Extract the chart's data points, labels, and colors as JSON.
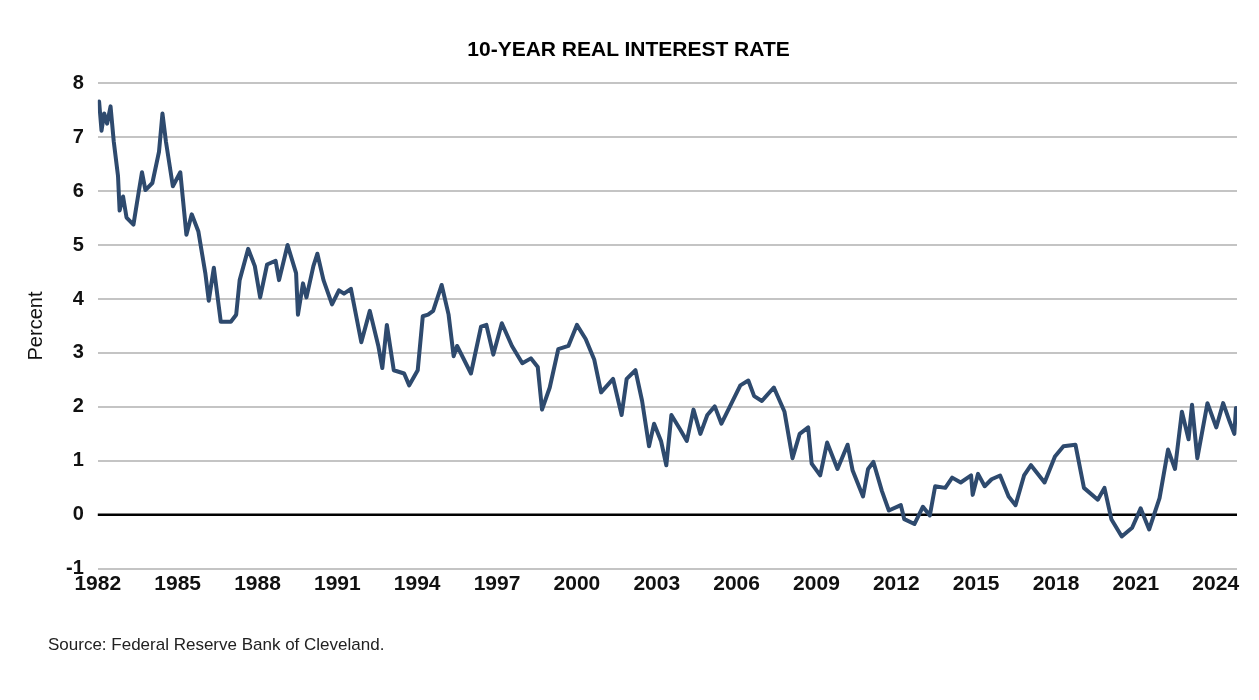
{
  "chart_data": {
    "type": "line",
    "title": "10-YEAR REAL INTEREST RATE",
    "ylabel": "Percent",
    "annotations": [
      "Source: Federal Reserve Bank of Cleveland."
    ],
    "xlim": [
      1982,
      2024.8
    ],
    "xticks": [
      1982,
      1985,
      1988,
      1991,
      1994,
      1997,
      2000,
      2003,
      2006,
      2009,
      2012,
      2015,
      2018,
      2021,
      2024
    ],
    "ylim": [
      -1,
      8
    ],
    "yticks": [
      -1,
      0,
      1,
      2,
      3,
      4,
      5,
      6,
      7,
      8
    ],
    "grid": "y",
    "legend": false,
    "marker": "none",
    "line_style": "solid",
    "ref_lines": [
      {
        "axis": "y",
        "value": 0,
        "color": "#000000"
      }
    ],
    "series": [
      {
        "color": "#2e4a6e",
        "x": [
          1982.05,
          1982.14,
          1982.24,
          1982.35,
          1982.48,
          1982.6,
          1982.76,
          1982.82,
          1982.95,
          1983.08,
          1983.34,
          1983.53,
          1983.66,
          1983.79,
          1984.05,
          1984.3,
          1984.43,
          1984.56,
          1984.82,
          1985.1,
          1985.33,
          1985.53,
          1985.78,
          1986.04,
          1986.17,
          1986.36,
          1986.62,
          1987.0,
          1987.2,
          1987.33,
          1987.65,
          1987.9,
          1988.1,
          1988.36,
          1988.68,
          1988.81,
          1989.13,
          1989.45,
          1989.52,
          1989.71,
          1989.84,
          1990.1,
          1990.25,
          1990.48,
          1990.8,
          1991.06,
          1991.25,
          1991.51,
          1991.9,
          1992.22,
          1992.54,
          1992.69,
          1992.86,
          1993.12,
          1993.51,
          1993.7,
          1994.02,
          1994.21,
          1994.41,
          1994.6,
          1994.92,
          1995.18,
          1995.37,
          1995.5,
          1996.02,
          1996.4,
          1996.6,
          1996.86,
          1997.18,
          1997.56,
          1997.95,
          1998.27,
          1998.53,
          1998.69,
          1998.98,
          1999.3,
          1999.68,
          2000.0,
          2000.33,
          2000.65,
          2000.91,
          2001.36,
          2001.68,
          2001.87,
          2002.2,
          2002.45,
          2002.71,
          2002.9,
          2003.16,
          2003.36,
          2003.55,
          2003.87,
          2004.13,
          2004.38,
          2004.64,
          2004.9,
          2005.18,
          2005.43,
          2005.82,
          2006.14,
          2006.44,
          2006.66,
          2006.95,
          2007.4,
          2007.8,
          2008.1,
          2008.37,
          2008.69,
          2008.82,
          2009.14,
          2009.4,
          2009.79,
          2010.17,
          2010.36,
          2010.75,
          2010.94,
          2011.14,
          2011.46,
          2011.72,
          2012.17,
          2012.3,
          2012.68,
          2013.0,
          2013.26,
          2013.46,
          2013.84,
          2014.1,
          2014.42,
          2014.81,
          2014.87,
          2015.07,
          2015.32,
          2015.58,
          2015.9,
          2016.22,
          2016.48,
          2016.8,
          2017.06,
          2017.57,
          2017.96,
          2018.28,
          2018.73,
          2019.05,
          2019.57,
          2019.82,
          2020.08,
          2020.47,
          2020.86,
          2021.18,
          2021.5,
          2021.89,
          2022.21,
          2022.47,
          2022.73,
          2022.98,
          2023.11,
          2023.31,
          2023.69,
          2024.02,
          2024.28,
          2024.53,
          2024.7,
          2024.76
        ],
        "values": [
          7.66,
          7.12,
          7.44,
          7.25,
          7.57,
          6.92,
          6.28,
          5.64,
          5.9,
          5.51,
          5.38,
          5.96,
          6.35,
          6.02,
          6.15,
          6.73,
          7.44,
          6.92,
          6.09,
          6.35,
          5.19,
          5.57,
          5.25,
          4.48,
          3.97,
          4.58,
          3.58,
          3.58,
          3.71,
          4.35,
          4.93,
          4.61,
          4.03,
          4.64,
          4.71,
          4.35,
          5.0,
          4.48,
          3.71,
          4.29,
          4.03,
          4.61,
          4.84,
          4.35,
          3.9,
          4.16,
          4.1,
          4.19,
          3.2,
          3.78,
          3.13,
          2.72,
          3.52,
          2.68,
          2.62,
          2.4,
          2.68,
          3.68,
          3.71,
          3.78,
          4.26,
          3.71,
          2.94,
          3.13,
          2.62,
          3.49,
          3.52,
          2.97,
          3.55,
          3.13,
          2.81,
          2.9,
          2.74,
          1.95,
          2.36,
          3.07,
          3.13,
          3.52,
          3.26,
          2.88,
          2.27,
          2.52,
          1.85,
          2.52,
          2.68,
          2.11,
          1.27,
          1.69,
          1.37,
          0.92,
          1.85,
          1.59,
          1.37,
          1.95,
          1.5,
          1.85,
          2.01,
          1.69,
          2.08,
          2.4,
          2.49,
          2.2,
          2.11,
          2.36,
          1.91,
          1.05,
          1.5,
          1.62,
          0.95,
          0.73,
          1.34,
          0.85,
          1.3,
          0.82,
          0.34,
          0.85,
          0.98,
          0.44,
          0.08,
          0.18,
          -0.08,
          -0.17,
          0.15,
          -0.01,
          0.53,
          0.5,
          0.69,
          0.6,
          0.73,
          0.37,
          0.76,
          0.53,
          0.66,
          0.73,
          0.34,
          0.18,
          0.73,
          0.92,
          0.6,
          1.08,
          1.27,
          1.3,
          0.5,
          0.28,
          0.5,
          -0.08,
          -0.4,
          -0.24,
          0.12,
          -0.27,
          0.31,
          1.21,
          0.85,
          1.91,
          1.4,
          2.04,
          1.05,
          2.07,
          1.62,
          2.07,
          1.72,
          1.5,
          1.98
        ]
      }
    ]
  }
}
